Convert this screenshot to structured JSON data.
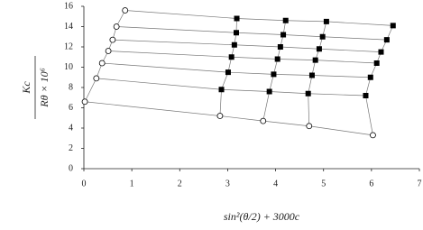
{
  "chart_data": {
    "type": "scatter",
    "x_label": "sin²(θ/2) + 3000c",
    "y_label": {
      "numerator": "Kc",
      "denominator": "Rθ × 10⁶"
    },
    "xlim": [
      0,
      7
    ],
    "xticks": [
      0,
      1,
      2,
      3,
      4,
      5,
      6,
      7
    ],
    "ylim": [
      0,
      16
    ],
    "yticks": [
      0,
      2,
      4,
      6,
      8,
      10,
      12,
      14,
      16
    ],
    "color": "#000000",
    "line_color": "#777777",
    "series": [
      {
        "x": [
          0.86,
          3.19,
          4.21,
          5.06,
          6.45
        ],
        "values": [
          15.6,
          14.8,
          14.6,
          14.5,
          14.1
        ],
        "markers": [
          "circle",
          "square",
          "square",
          "square",
          "square"
        ]
      },
      {
        "x": [
          0.68,
          3.18,
          4.16,
          4.98,
          6.32
        ],
        "values": [
          14.0,
          13.4,
          13.2,
          13.0,
          12.7
        ],
        "markers": [
          "circle",
          "square",
          "square",
          "square",
          "square"
        ]
      },
      {
        "x": [
          0.6,
          3.14,
          4.1,
          4.91,
          6.2
        ],
        "values": [
          12.7,
          12.2,
          12.0,
          11.8,
          11.5
        ],
        "markers": [
          "circle",
          "square",
          "square",
          "square",
          "square"
        ]
      },
      {
        "x": [
          0.51,
          3.08,
          4.04,
          4.83,
          6.11
        ],
        "values": [
          11.6,
          11.0,
          10.8,
          10.7,
          10.4
        ],
        "markers": [
          "circle",
          "square",
          "square",
          "square",
          "square"
        ]
      },
      {
        "x": [
          0.38,
          3.01,
          3.96,
          4.76,
          5.98
        ],
        "values": [
          10.4,
          9.5,
          9.3,
          9.2,
          9.0
        ],
        "markers": [
          "circle",
          "square",
          "square",
          "square",
          "square"
        ]
      },
      {
        "x": [
          0.26,
          2.87,
          3.87,
          4.68,
          5.88
        ],
        "values": [
          8.9,
          7.8,
          7.6,
          7.4,
          7.2
        ],
        "markers": [
          "circle",
          "square",
          "square",
          "square",
          "square"
        ]
      },
      {
        "x": [
          0.02,
          2.84,
          3.74,
          4.7,
          6.03
        ],
        "values": [
          6.6,
          5.2,
          4.7,
          4.2,
          3.3
        ],
        "markers": [
          "circle",
          "circle",
          "circle",
          "circle",
          "circle"
        ]
      }
    ]
  }
}
